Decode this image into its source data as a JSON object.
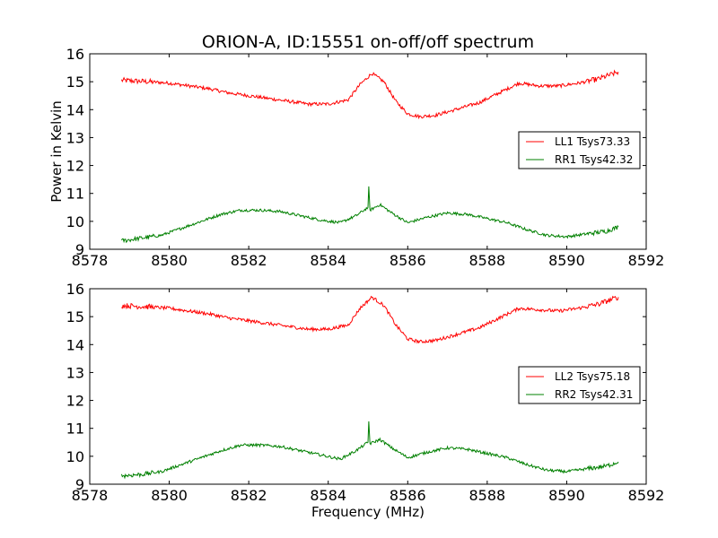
{
  "chart_data": [
    {
      "type": "line",
      "title": "ORION-A, ID:15551 on-off/off spectrum",
      "xlabel": "",
      "ylabel": "Power in Kelvin",
      "xlim": [
        8578,
        8592
      ],
      "ylim": [
        9,
        16
      ],
      "xticks": [
        8578,
        8580,
        8582,
        8584,
        8586,
        8588,
        8590,
        8592
      ],
      "yticks": [
        9,
        10,
        11,
        12,
        13,
        14,
        15,
        16
      ],
      "legend_position": "center-right",
      "series": [
        {
          "name": "LL1 Tsys73.33",
          "color": "#ff0000",
          "x": [
            8578.8,
            8579.5,
            8580.0,
            8580.5,
            8581.0,
            8581.5,
            8582.0,
            8582.5,
            8583.0,
            8583.5,
            8584.0,
            8584.5,
            8584.8,
            8585.1,
            8585.4,
            8585.7,
            8586.0,
            8586.3,
            8586.7,
            8587.2,
            8587.8,
            8588.3,
            8588.8,
            8589.3,
            8589.8,
            8590.3,
            8590.8,
            8591.3
          ],
          "y": [
            15.05,
            15.0,
            14.95,
            14.85,
            14.75,
            14.6,
            14.5,
            14.4,
            14.3,
            14.2,
            14.2,
            14.35,
            14.9,
            15.3,
            15.0,
            14.3,
            13.85,
            13.75,
            13.8,
            14.0,
            14.25,
            14.6,
            14.95,
            14.85,
            14.85,
            14.95,
            15.1,
            15.35
          ]
        },
        {
          "name": "RR1 Tsys42.32",
          "color": "#008000",
          "x": [
            8578.8,
            8579.3,
            8579.8,
            8580.3,
            8580.8,
            8581.3,
            8581.8,
            8582.3,
            8582.8,
            8583.3,
            8583.8,
            8584.3,
            8584.7,
            8585.0,
            8585.02,
            8585.05,
            8585.3,
            8585.6,
            8586.0,
            8586.5,
            8587.0,
            8587.5,
            8588.0,
            8588.5,
            8589.0,
            8589.5,
            8590.0,
            8590.5,
            8591.0,
            8591.3
          ],
          "y": [
            9.3,
            9.4,
            9.5,
            9.75,
            10.0,
            10.25,
            10.4,
            10.4,
            10.35,
            10.2,
            10.05,
            9.95,
            10.2,
            10.5,
            11.25,
            10.4,
            10.6,
            10.3,
            9.95,
            10.15,
            10.3,
            10.25,
            10.1,
            9.95,
            9.7,
            9.5,
            9.45,
            9.55,
            9.65,
            9.8
          ]
        }
      ]
    },
    {
      "type": "line",
      "title": "",
      "xlabel": "Frequency (MHz)",
      "ylabel": "",
      "xlim": [
        8578,
        8592
      ],
      "ylim": [
        9,
        16
      ],
      "xticks": [
        8578,
        8580,
        8582,
        8584,
        8586,
        8588,
        8590,
        8592
      ],
      "yticks": [
        9,
        10,
        11,
        12,
        13,
        14,
        15,
        16
      ],
      "legend_position": "center-right",
      "series": [
        {
          "name": "LL2 Tsys75.18",
          "color": "#ff0000",
          "x": [
            8578.8,
            8579.5,
            8580.0,
            8580.5,
            8581.0,
            8581.5,
            8582.0,
            8582.5,
            8583.0,
            8583.5,
            8584.0,
            8584.5,
            8584.8,
            8585.1,
            8585.4,
            8585.7,
            8586.0,
            8586.3,
            8586.7,
            8587.2,
            8587.8,
            8588.3,
            8588.8,
            8589.3,
            8589.8,
            8590.3,
            8590.8,
            8591.3
          ],
          "y": [
            15.4,
            15.35,
            15.3,
            15.2,
            15.1,
            14.95,
            14.85,
            14.75,
            14.65,
            14.55,
            14.55,
            14.7,
            15.3,
            15.7,
            15.4,
            14.7,
            14.2,
            14.1,
            14.15,
            14.35,
            14.6,
            14.95,
            15.3,
            15.25,
            15.2,
            15.3,
            15.45,
            15.7
          ]
        },
        {
          "name": "RR2 Tsys42.31",
          "color": "#008000",
          "x": [
            8578.8,
            8579.3,
            8579.8,
            8580.3,
            8580.8,
            8581.3,
            8581.8,
            8582.3,
            8582.8,
            8583.3,
            8583.8,
            8584.3,
            8584.7,
            8585.0,
            8585.02,
            8585.05,
            8585.3,
            8585.6,
            8586.0,
            8586.5,
            8587.0,
            8587.5,
            8588.0,
            8588.5,
            8589.0,
            8589.5,
            8590.0,
            8590.5,
            8591.0,
            8591.3
          ],
          "y": [
            9.3,
            9.35,
            9.45,
            9.7,
            9.95,
            10.2,
            10.4,
            10.4,
            10.35,
            10.2,
            10.05,
            9.9,
            10.2,
            10.5,
            11.25,
            10.45,
            10.6,
            10.3,
            9.95,
            10.15,
            10.3,
            10.25,
            10.1,
            9.95,
            9.7,
            9.5,
            9.45,
            9.55,
            9.65,
            9.8
          ]
        }
      ]
    }
  ]
}
